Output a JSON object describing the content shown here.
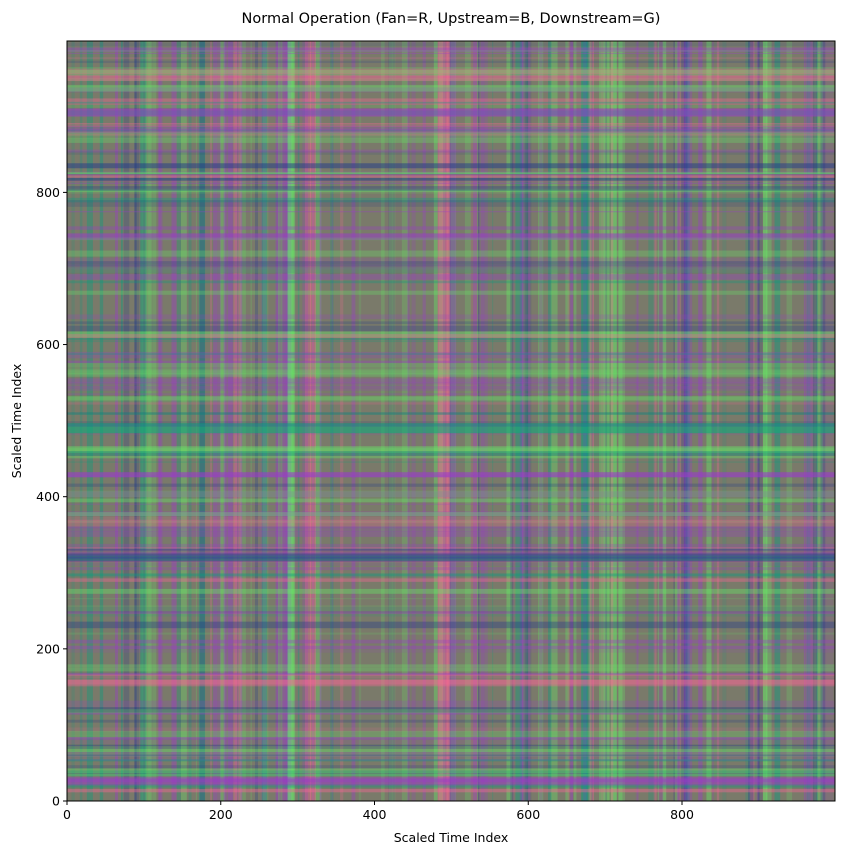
{
  "chart_data": {
    "type": "heatmap",
    "title": "Normal Operation (Fan=R, Upstream=B, Downstream=G)",
    "xlabel": "Scaled Time Index",
    "ylabel": "Scaled Time Index",
    "xlim": [
      0,
      999
    ],
    "ylim": [
      0,
      999
    ],
    "x_ticks": [
      0,
      200,
      400,
      600,
      800
    ],
    "y_ticks": [
      0,
      200,
      400,
      600,
      800
    ],
    "x_tick_labels": [
      "0",
      "200",
      "400",
      "600",
      "800"
    ],
    "y_tick_labels": [
      "0",
      "200",
      "400",
      "600",
      "800"
    ],
    "grid": false,
    "legend": "none",
    "channels": {
      "red": "Fan",
      "blue": "Upstream",
      "green": "Downstream"
    },
    "colors": {
      "background": "#ffffff",
      "axis": "#000000",
      "base_mix": "#7a7a6a",
      "bright_green": "#66ee66",
      "pink": "#ff6699",
      "teal": "#00a080",
      "dark_blue": "#203a8a",
      "purple": "#9a3acc"
    }
  }
}
